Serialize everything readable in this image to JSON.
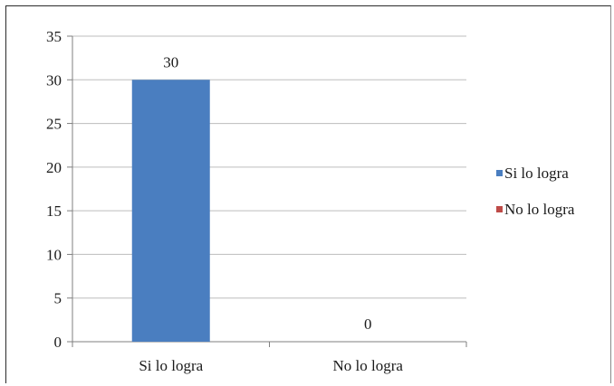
{
  "chart_data": {
    "type": "bar",
    "categories": [
      "Si lo logra",
      "No lo logra"
    ],
    "series": [
      {
        "name": "Si lo logra",
        "color": "#4a7ec0"
      },
      {
        "name": "No lo logra",
        "color": "#be4b48"
      }
    ],
    "values": [
      30,
      0
    ],
    "data_labels": [
      "30",
      "0"
    ],
    "ylim": [
      0,
      35
    ],
    "yticks": [
      0,
      5,
      10,
      15,
      20,
      25,
      30,
      35
    ],
    "grid": true,
    "legend_position": "right"
  }
}
